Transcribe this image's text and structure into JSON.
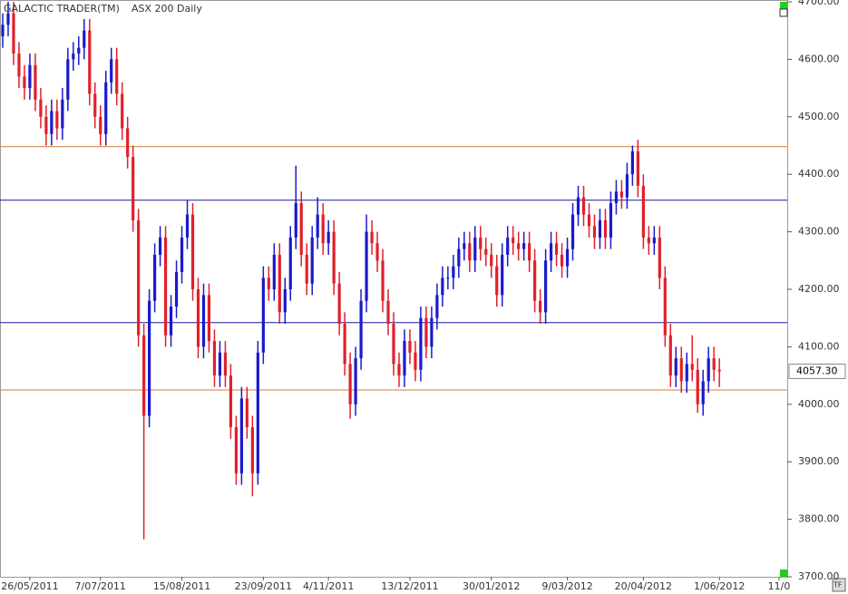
{
  "chart_data": {
    "type": "ohlc",
    "title": "GALACTIC TRADER(TM)",
    "subtitle": "ASX 200 Daily",
    "up_color": "#1a1acc",
    "down_color": "#e0202a",
    "open": [
      4640,
      4660,
      4680,
      4610,
      4570,
      4550,
      4590,
      4530,
      4500,
      4470,
      4510,
      4480,
      4530,
      4600,
      4610,
      4620,
      4650,
      4540,
      4500,
      4470,
      4560,
      4600,
      4540,
      4480,
      4430,
      4320,
      4120,
      3980,
      4180,
      4260,
      4290,
      4120,
      4170,
      4230,
      4290,
      4330,
      4200,
      4100,
      4190,
      4110,
      4050,
      4090,
      4050,
      3960,
      3880,
      4010,
      3960,
      3880,
      4090,
      4220,
      4200,
      4260,
      4160,
      4200,
      4290,
      4350,
      4260,
      4210,
      4290,
      4330,
      4280,
      4300,
      4210,
      4140,
      4070,
      4000,
      4080,
      4180,
      4300,
      4280,
      4250,
      4180,
      4140,
      4070,
      4050,
      4110,
      4090,
      4060,
      4150,
      4100,
      4150,
      4190,
      4220,
      4220,
      4240,
      4270,
      4280,
      4250,
      4290,
      4270,
      4260,
      4240,
      4190,
      4260,
      4290,
      4280,
      4270,
      4280,
      4250,
      4180,
      4160,
      4250,
      4280,
      4260,
      4240,
      4270,
      4330,
      4360,
      4330,
      4310,
      4290,
      4320,
      4290,
      4350,
      4370,
      4360,
      4400,
      4440,
      4380,
      4290,
      4280,
      4290,
      4220,
      4120,
      4050,
      4080,
      4040,
      4070,
      4060,
      4000,
      4040,
      4080,
      4060
    ],
    "high": [
      4680,
      4700,
      4700,
      4630,
      4590,
      4610,
      4610,
      4550,
      4520,
      4530,
      4530,
      4550,
      4620,
      4630,
      4640,
      4670,
      4670,
      4560,
      4520,
      4580,
      4620,
      4620,
      4560,
      4500,
      4450,
      4340,
      4140,
      4200,
      4280,
      4310,
      4310,
      4190,
      4250,
      4310,
      4355,
      4350,
      4220,
      4210,
      4210,
      4130,
      4110,
      4110,
      4070,
      3980,
      4030,
      4030,
      3980,
      4110,
      4240,
      4240,
      4280,
      4280,
      4220,
      4310,
      4415,
      4370,
      4280,
      4310,
      4360,
      4350,
      4320,
      4320,
      4230,
      4160,
      4090,
      4100,
      4200,
      4330,
      4320,
      4300,
      4270,
      4200,
      4160,
      4090,
      4130,
      4130,
      4110,
      4170,
      4170,
      4170,
      4210,
      4240,
      4240,
      4260,
      4290,
      4300,
      4300,
      4310,
      4310,
      4290,
      4280,
      4260,
      4280,
      4310,
      4310,
      4300,
      4300,
      4300,
      4270,
      4200,
      4270,
      4300,
      4300,
      4280,
      4290,
      4350,
      4380,
      4380,
      4350,
      4330,
      4340,
      4340,
      4370,
      4390,
      4390,
      4420,
      4450,
      4460,
      4400,
      4310,
      4310,
      4310,
      4240,
      4140,
      4100,
      4100,
      4090,
      4120,
      4080,
      4060,
      4100,
      4100,
      4080
    ],
    "low": [
      4620,
      4640,
      4590,
      4550,
      4530,
      4530,
      4510,
      4480,
      4450,
      4450,
      4460,
      4460,
      4510,
      4580,
      4590,
      4600,
      4520,
      4480,
      4450,
      4450,
      4540,
      4520,
      4460,
      4410,
      4300,
      4100,
      3765,
      3960,
      4160,
      4240,
      4100,
      4100,
      4150,
      4210,
      4270,
      4180,
      4080,
      4080,
      4090,
      4030,
      4030,
      4030,
      3940,
      3860,
      3860,
      3940,
      3840,
      3860,
      4070,
      4180,
      4180,
      4140,
      4140,
      4180,
      4270,
      4240,
      4190,
      4190,
      4270,
      4260,
      4260,
      4190,
      4120,
      4050,
      3975,
      3980,
      4060,
      4160,
      4260,
      4230,
      4160,
      4120,
      4050,
      4030,
      4030,
      4070,
      4040,
      4040,
      4080,
      4080,
      4130,
      4170,
      4200,
      4200,
      4220,
      4250,
      4230,
      4230,
      4250,
      4240,
      4220,
      4170,
      4170,
      4240,
      4260,
      4250,
      4250,
      4230,
      4160,
      4140,
      4140,
      4230,
      4240,
      4220,
      4220,
      4250,
      4310,
      4310,
      4290,
      4270,
      4270,
      4270,
      4270,
      4330,
      4340,
      4340,
      4380,
      4360,
      4270,
      4260,
      4260,
      4200,
      4100,
      4030,
      4030,
      4020,
      4020,
      4040,
      3985,
      3980,
      4020,
      4040,
      4030
    ],
    "close": [
      4660,
      4680,
      4610,
      4570,
      4550,
      4590,
      4530,
      4500,
      4470,
      4510,
      4480,
      4530,
      4600,
      4610,
      4620,
      4650,
      4540,
      4500,
      4470,
      4560,
      4600,
      4540,
      4480,
      4430,
      4320,
      4120,
      3980,
      4180,
      4260,
      4290,
      4120,
      4170,
      4230,
      4290,
      4330,
      4200,
      4100,
      4190,
      4110,
      4050,
      4090,
      4050,
      3960,
      3880,
      4010,
      3960,
      3880,
      4090,
      4220,
      4200,
      4260,
      4160,
      4200,
      4290,
      4350,
      4260,
      4210,
      4290,
      4330,
      4280,
      4300,
      4210,
      4140,
      4070,
      4000,
      4080,
      4180,
      4300,
      4280,
      4250,
      4180,
      4140,
      4070,
      4050,
      4110,
      4090,
      4060,
      4150,
      4100,
      4150,
      4190,
      4220,
      4220,
      4240,
      4270,
      4280,
      4250,
      4290,
      4270,
      4260,
      4240,
      4190,
      4260,
      4290,
      4280,
      4270,
      4280,
      4250,
      4180,
      4160,
      4250,
      4280,
      4260,
      4240,
      4270,
      4330,
      4360,
      4330,
      4310,
      4290,
      4320,
      4290,
      4350,
      4370,
      4360,
      4400,
      4440,
      4380,
      4290,
      4280,
      4290,
      4220,
      4120,
      4050,
      4080,
      4040,
      4070,
      4060,
      4000,
      4040,
      4080,
      4060,
      4057.3
    ],
    "xlim": [
      -0.5,
      144.5
    ],
    "xticks": [
      {
        "value": 5,
        "label": "26/05/2011"
      },
      {
        "value": 18,
        "label": "7/07/2011"
      },
      {
        "value": 33,
        "label": "15/08/2011"
      },
      {
        "value": 48,
        "label": "23/09/2011"
      },
      {
        "value": 60,
        "label": "4/11/2011"
      },
      {
        "value": 75,
        "label": "13/12/2011"
      },
      {
        "value": 90,
        "label": "30/01/2012"
      },
      {
        "value": 104,
        "label": "9/03/2012"
      },
      {
        "value": 118,
        "label": "20/04/2012"
      },
      {
        "value": 132,
        "label": "1/06/2012"
      },
      {
        "value": 143,
        "label": "11/0"
      }
    ],
    "ylim": [
      3700,
      4700
    ],
    "yticks": [
      {
        "value": 3700,
        "label": "3700.00"
      },
      {
        "value": 3800,
        "label": "3800.00"
      },
      {
        "value": 3900,
        "label": "3900.00"
      },
      {
        "value": 4000,
        "label": "4000.00"
      },
      {
        "value": 4100,
        "label": "4100.00"
      },
      {
        "value": 4200,
        "label": "4200.00"
      },
      {
        "value": 4300,
        "label": "4300.00"
      },
      {
        "value": 4400,
        "label": "4400.00"
      },
      {
        "value": 4500,
        "label": "4500.00"
      },
      {
        "value": 4600,
        "label": "4600.00"
      },
      {
        "value": 4700,
        "label": "4700.00"
      }
    ],
    "levels": [
      {
        "value": 4448,
        "color": "#e07a30"
      },
      {
        "value": 4355,
        "color": "#1a1aa0"
      },
      {
        "value": 4142,
        "color": "#1a1aa0"
      },
      {
        "value": 4025,
        "color": "#e07a30"
      }
    ],
    "last_price": {
      "value": 4057.3,
      "label": "4057.30"
    }
  }
}
